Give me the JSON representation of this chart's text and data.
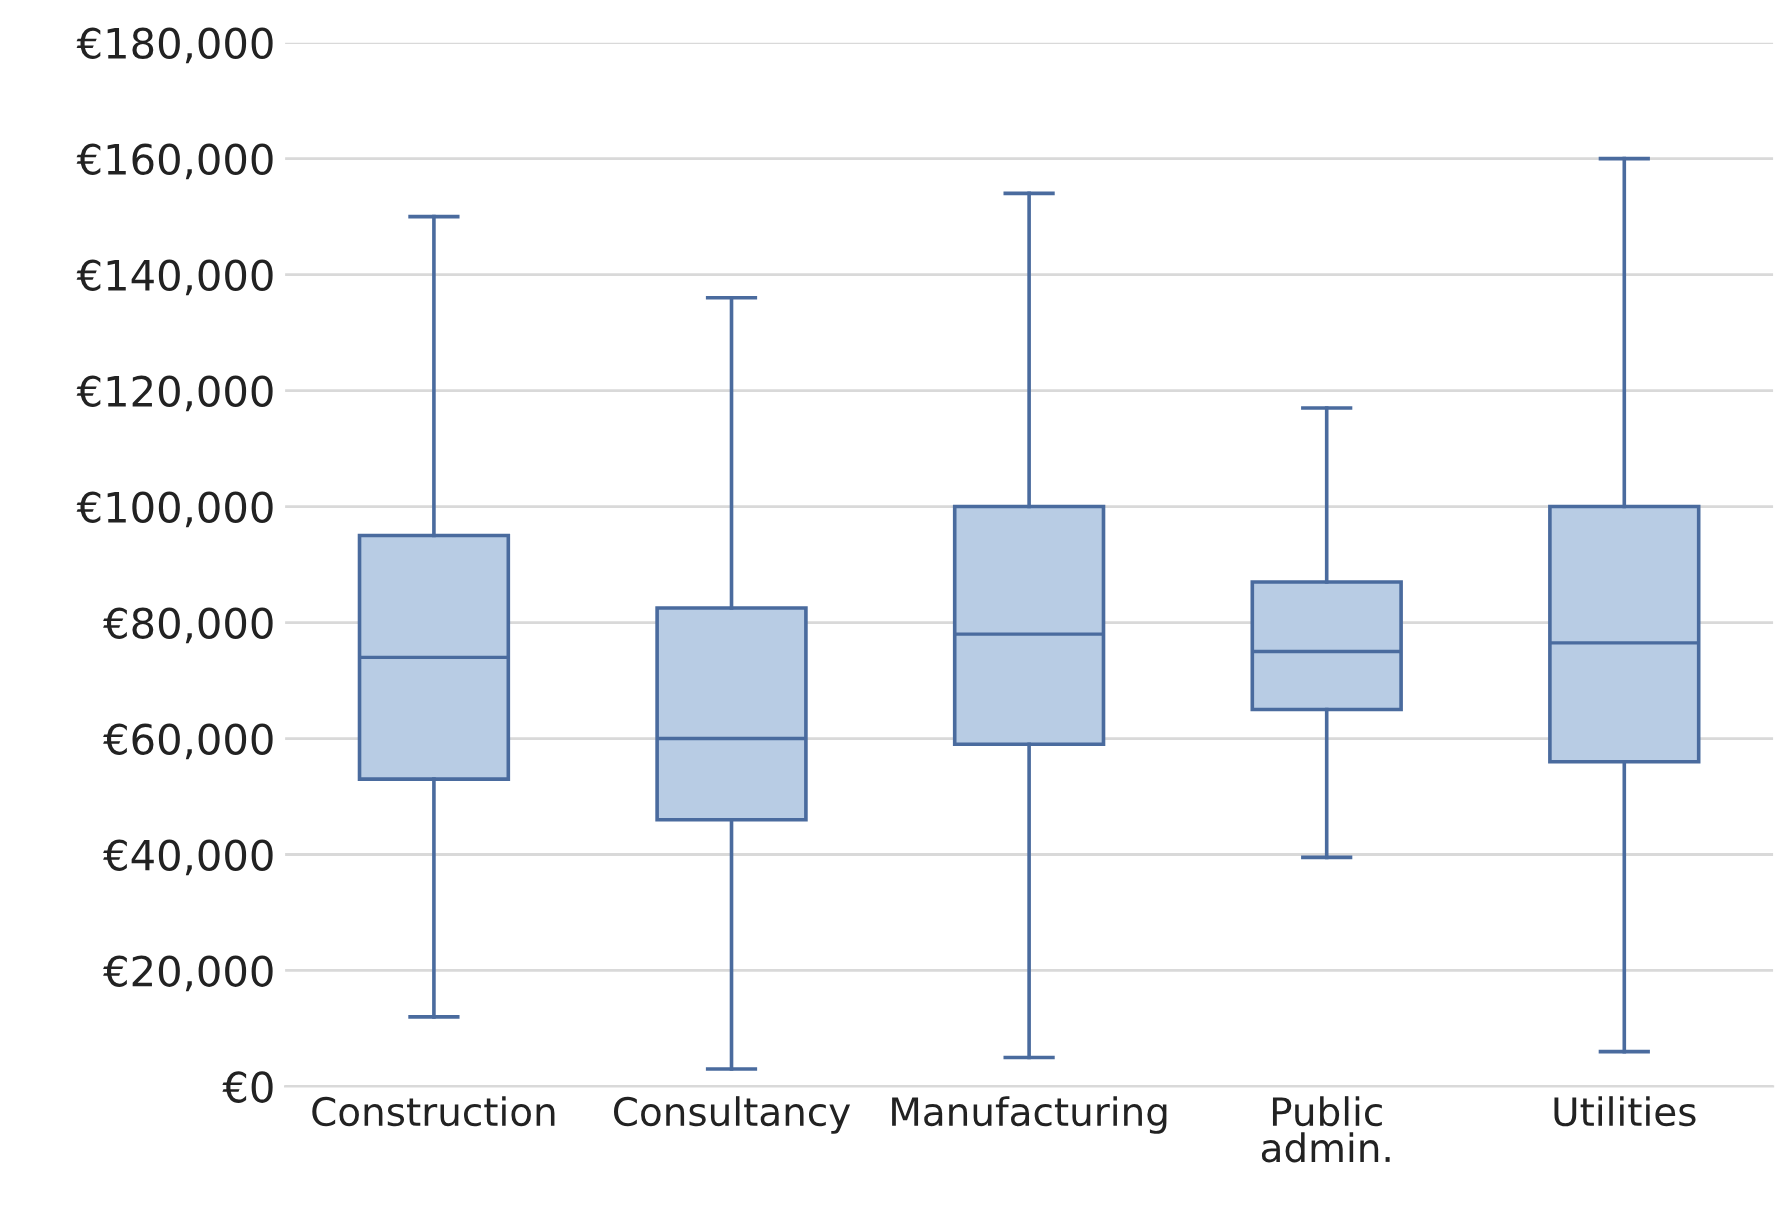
{
  "chart_data": {
    "type": "box",
    "categories": [
      "Construction",
      "Consultancy",
      "Manufacturing",
      "Public\nadmin.",
      "Utilities"
    ],
    "boxes": [
      {
        "low": 12000,
        "q1": 53000,
        "median": 74000,
        "q3": 95000,
        "high": 150000
      },
      {
        "low": 3000,
        "q1": 46000,
        "median": 60000,
        "q3": 82500,
        "high": 136000
      },
      {
        "low": 5000,
        "q1": 59000,
        "median": 78000,
        "q3": 100000,
        "high": 154000
      },
      {
        "low": 39500,
        "q1": 65000,
        "median": 75000,
        "q3": 87000,
        "high": 117000
      },
      {
        "low": 6000,
        "q1": 56000,
        "median": 76500,
        "q3": 100000,
        "high": 160000
      }
    ],
    "color": "#b8cce4",
    "ylim": [
      0,
      180000
    ],
    "yticks": [
      {
        "value": 0,
        "label": "€0"
      },
      {
        "value": 20000,
        "label": "€20,000"
      },
      {
        "value": 40000,
        "label": "€40,000"
      },
      {
        "value": 60000,
        "label": "€60,000"
      },
      {
        "value": 80000,
        "label": "€80,000"
      },
      {
        "value": 100000,
        "label": "€100,000"
      },
      {
        "value": 120000,
        "label": "€120,000"
      },
      {
        "value": 140000,
        "label": "€140,000"
      },
      {
        "value": 160000,
        "label": "€160,000"
      },
      {
        "value": 180000,
        "label": "€180,000"
      }
    ],
    "grid": "y"
  }
}
